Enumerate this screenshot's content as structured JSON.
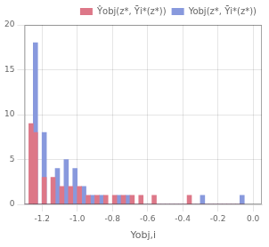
{
  "chart_data": {
    "type": "histogram",
    "xlabel": "Yobj,i",
    "bins": [
      -1.3,
      -1.275,
      -1.25,
      -1.225,
      -1.2,
      -1.175,
      -1.15,
      -1.125,
      -1.1,
      -1.075,
      -1.05,
      -1.025,
      -1.0,
      -0.975,
      -0.95,
      -0.925,
      -0.9,
      -0.875,
      -0.85,
      -0.825,
      -0.8,
      -0.775,
      -0.75,
      -0.725,
      -0.7,
      -0.675,
      -0.65,
      -0.625,
      -0.6,
      -0.575,
      -0.55,
      -0.525,
      -0.5,
      -0.475,
      -0.45,
      -0.425,
      -0.4,
      -0.375,
      -0.35,
      -0.325,
      -0.3,
      -0.275,
      -0.25,
      -0.225,
      -0.2,
      -0.175,
      -0.15,
      -0.125,
      -0.1,
      -0.075,
      -0.05
    ],
    "series": [
      {
        "name": "Yobj(z*, Ȳi*(z*))",
        "color": "#8899dd",
        "values": [
          0,
          0,
          18,
          0,
          8,
          0,
          0,
          4,
          0,
          5,
          0,
          4,
          0,
          2,
          0,
          1,
          0,
          1,
          0,
          0,
          0,
          1,
          0,
          1,
          0,
          0,
          0,
          0,
          0,
          0,
          0,
          0,
          0,
          0,
          0,
          0,
          0,
          0,
          0,
          0,
          1,
          0,
          0,
          0,
          0,
          0,
          0,
          0,
          0,
          1
        ]
      },
      {
        "name": "Ŷobj(z*, Ȳi*(z*))",
        "color": "#dd7788",
        "values": [
          0,
          9,
          8,
          0,
          3,
          0,
          3,
          0,
          2,
          0,
          2,
          0,
          2,
          0,
          1,
          0,
          1,
          0,
          1,
          0,
          1,
          0,
          1,
          0,
          1,
          0,
          1,
          0,
          0,
          1,
          0,
          0,
          0,
          0,
          0,
          0,
          0,
          1,
          0,
          0,
          0,
          0,
          0,
          0,
          0,
          0,
          0,
          0,
          0,
          0
        ]
      }
    ],
    "xlim": [
      -1.3,
      0.05
    ],
    "ylim": [
      0,
      20
    ],
    "xticks": [
      -1.2,
      {
        "value": -1.0,
        "label": "-1.0"
      },
      -0.8,
      -0.6,
      -0.4,
      -0.2,
      {
        "value": 0.0,
        "label": "0.0"
      }
    ],
    "yticks": [
      0,
      5,
      10,
      15,
      20
    ],
    "grid": true,
    "legend": "upper right"
  }
}
